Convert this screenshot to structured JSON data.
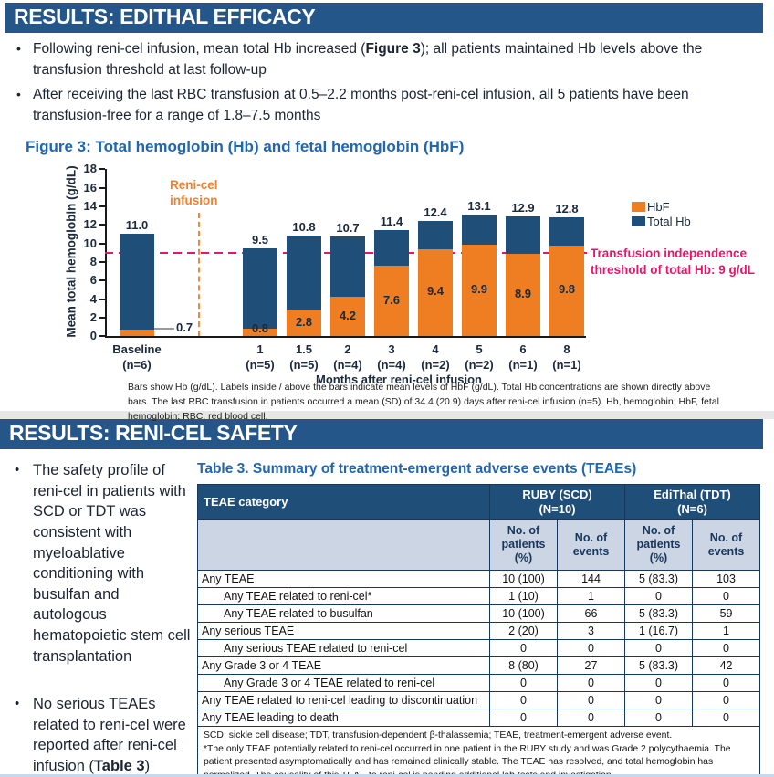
{
  "efficacy": {
    "header": "RESULTS: EDITHAL EFFICACY",
    "bullets": [
      {
        "pre": "Following reni-cel infusion, mean total Hb increased (",
        "bold": "Figure 3",
        "post": "); all patients maintained Hb levels above the transfusion threshold at last follow-up"
      },
      {
        "pre": "After receiving the last RBC transfusion at 0.5–2.2 months post-reni-cel infusion, all 5 patients have been transfusion-free for a range of 1.8–7.5 months",
        "bold": "",
        "post": ""
      }
    ],
    "figure_title": "Figure 3: Total hemoglobin (Hb) and fetal hemoglobin (HbF)",
    "footnote": "Bars show Hb (g/dL). Labels inside / above the bars indicate mean levels of HbF (g/dL). Total Hb concentrations are shown directly above bars. The last RBC transfusion in patients occurred a mean (SD) of 34.4 (20.9) days after reni-cel infusion (n=5). Hb, hemoglobin; HbF, fetal hemoglobin; RBC, red blood cell."
  },
  "chart_data": {
    "type": "bar",
    "stacked": true,
    "title": "Figure 3: Total hemoglobin (Hb) and fetal hemoglobin (HbF)",
    "xlabel": "Months after reni-cel infusion",
    "ylabel": "Mean total hemoglobin (g/dL)",
    "ylim": [
      0,
      18
    ],
    "ytick_step": 2,
    "grid": false,
    "legend_position": "right",
    "bars": [
      {
        "cat": "Baseline",
        "n": "(n=6)",
        "total": 11.0,
        "hbf": 0.7,
        "total_label": "11.0",
        "hbf_label": "0.7"
      },
      {
        "cat": "1",
        "n": "(n=5)",
        "total": 9.5,
        "hbf": 0.8,
        "total_label": "9.5",
        "hbf_label": "0.8"
      },
      {
        "cat": "1.5",
        "n": "(n=5)",
        "total": 10.8,
        "hbf": 2.8,
        "total_label": "10.8",
        "hbf_label": "2.8"
      },
      {
        "cat": "2",
        "n": "(n=4)",
        "total": 10.7,
        "hbf": 4.2,
        "total_label": "10.7",
        "hbf_label": "4.2"
      },
      {
        "cat": "3",
        "n": "(n=4)",
        "total": 11.4,
        "hbf": 7.6,
        "total_label": "11.4",
        "hbf_label": "7.6"
      },
      {
        "cat": "4",
        "n": "(n=2)",
        "total": 12.4,
        "hbf": 9.4,
        "total_label": "12.4",
        "hbf_label": "9.4"
      },
      {
        "cat": "5",
        "n": "(n=2)",
        "total": 13.1,
        "hbf": 9.9,
        "total_label": "13.1",
        "hbf_label": "9.9"
      },
      {
        "cat": "6",
        "n": "(n=1)",
        "total": 12.9,
        "hbf": 8.9,
        "total_label": "12.9",
        "hbf_label": "8.9"
      },
      {
        "cat": "8",
        "n": "(n=1)",
        "total": 12.8,
        "hbf": 9.8,
        "total_label": "12.8",
        "hbf_label": "9.8"
      }
    ],
    "series": [
      {
        "name": "HbF",
        "color": "#EF7D22",
        "values": [
          0.7,
          0.8,
          2.8,
          4.2,
          7.6,
          9.4,
          9.9,
          8.9,
          9.8
        ]
      },
      {
        "name": "Total Hb",
        "color": "#1F4E79",
        "values": [
          11.0,
          9.5,
          10.8,
          10.7,
          11.4,
          12.4,
          13.1,
          12.9,
          12.8
        ]
      }
    ],
    "legend": [
      {
        "label": "HbF",
        "color": "#EF7D22"
      },
      {
        "label": "Total Hb",
        "color": "#1F4E79"
      }
    ],
    "threshold": {
      "value": 9,
      "label": "Transfusion independence threshold of total Hb: 9 g/dL",
      "color": "#E8156B"
    },
    "infusion_marker": {
      "label": "Reni-cel infusion",
      "color": "#F0822F"
    }
  },
  "safety": {
    "header": "RESULTS: RENI-CEL SAFETY",
    "bullets": [
      {
        "pre": "The safety profile of reni-cel in patients with SCD or TDT was consistent with myeloablative conditioning with busulfan and autologous hematopoietic stem cell transplantation",
        "bold": "",
        "post": ""
      },
      {
        "pre": "No serious TEAEs related to reni-cel were reported after reni-cel infusion (",
        "bold": "Table 3",
        "post": ")"
      }
    ],
    "table": {
      "title": "Table 3. Summary of treatment-emergent adverse events (TEAEs)",
      "category_header": "TEAE category",
      "groups": [
        {
          "name": "RUBY (SCD)",
          "n": "(N=10)"
        },
        {
          "name": "EdiThal (TDT)",
          "n": "(N=6)"
        }
      ],
      "subheaders": [
        "No. of patients (%)",
        "No. of events",
        "No. of patients (%)",
        "No. of events"
      ],
      "rows": [
        {
          "label": "Any TEAE",
          "indent": false,
          "values": [
            "10 (100)",
            "144",
            "5 (83.3)",
            "103"
          ]
        },
        {
          "label": "Any TEAE related to reni-cel*",
          "indent": true,
          "values": [
            "1 (10)",
            "1",
            "0",
            "0"
          ]
        },
        {
          "label": "Any TEAE related to busulfan",
          "indent": true,
          "values": [
            "10 (100)",
            "66",
            "5 (83.3)",
            "59"
          ]
        },
        {
          "label": "Any serious TEAE",
          "indent": false,
          "values": [
            "2 (20)",
            "3",
            "1 (16.7)",
            "1"
          ]
        },
        {
          "label": "Any serious TEAE related to reni-cel",
          "indent": true,
          "values": [
            "0",
            "0",
            "0",
            "0"
          ]
        },
        {
          "label": "Any Grade 3 or 4 TEAE",
          "indent": false,
          "values": [
            "8 (80)",
            "27",
            "5 (83.3)",
            "42"
          ]
        },
        {
          "label": "Any Grade 3 or 4 TEAE related to reni-cel",
          "indent": true,
          "values": [
            "0",
            "0",
            "0",
            "0"
          ]
        },
        {
          "label": "Any TEAE related to reni-cel leading to discontinuation",
          "indent": false,
          "values": [
            "0",
            "0",
            "0",
            "0"
          ]
        },
        {
          "label": "Any TEAE leading to death",
          "indent": false,
          "values": [
            "0",
            "0",
            "0",
            "0"
          ]
        }
      ],
      "footnotes": [
        "SCD, sickle cell disease; TDT, transfusion-dependent β-thalassemia; TEAE, treatment-emergent adverse event.",
        "*The only TEAE potentially related to reni-cel occurred in one patient in the RUBY study and was Grade 2 polycythaemia. The patient presented asymptomatically and has remained clinically stable. The TEAE has resolved, and total hemoglobin has normalized. The causality of this TEAE to reni-cel is pending additional lab tests and investigation."
      ]
    }
  },
  "colors": {
    "header_bar": "#24568A",
    "bar_blue": "#1F4E79",
    "bar_orange": "#EF7D22",
    "threshold_pink": "#E8156B",
    "title_blue": "#2166AE",
    "table_header_bg": "#1F4E79",
    "table_subheader_bg": "#CBD5E4"
  }
}
